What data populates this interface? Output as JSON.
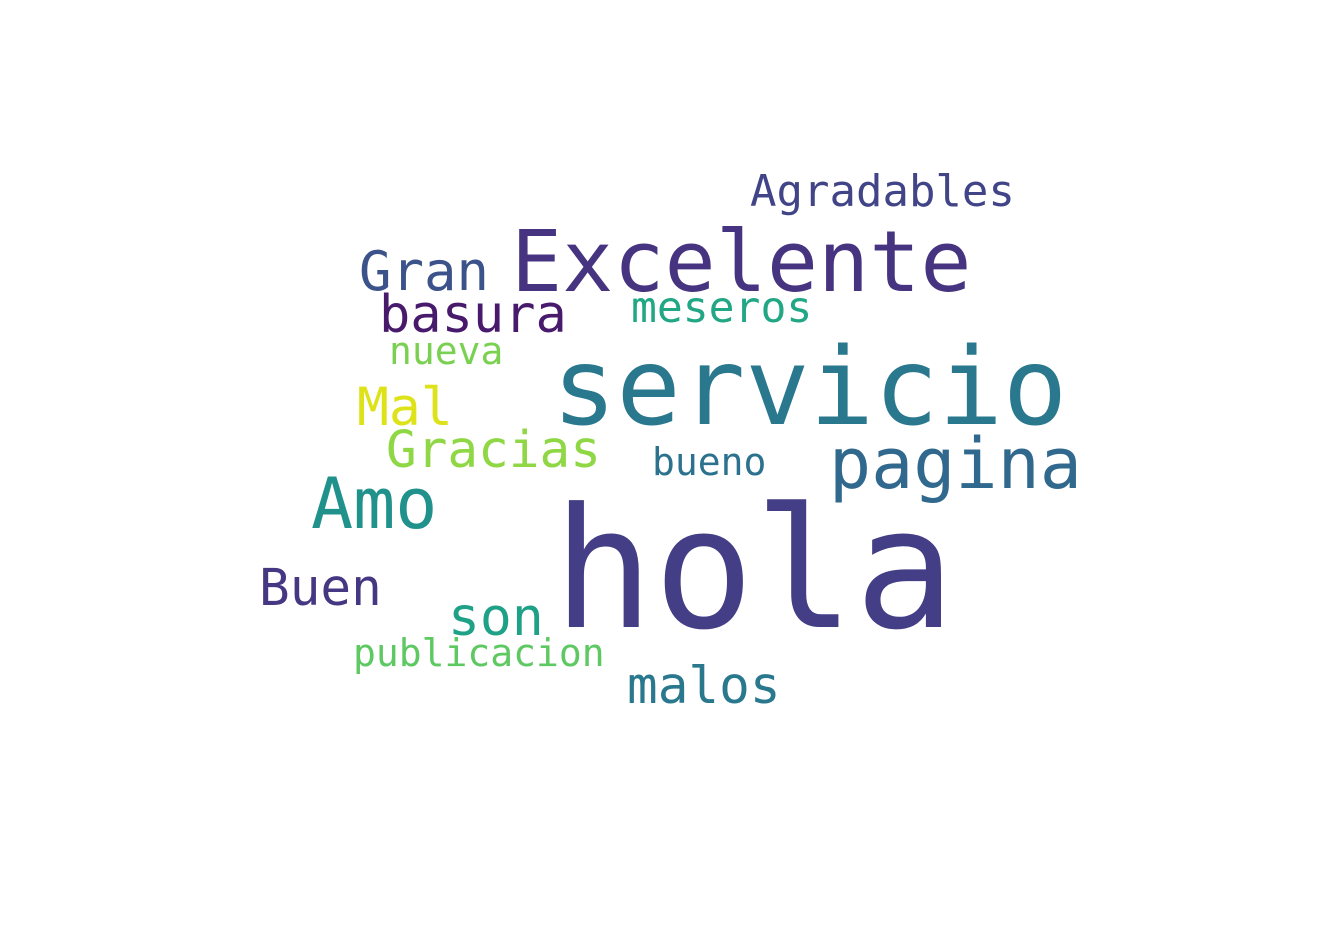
{
  "words": [
    {
      "text": "hola",
      "color": "#433e85"
    },
    {
      "text": "servicio",
      "color": "#2a788e"
    },
    {
      "text": "Excelente",
      "color": "#463480"
    },
    {
      "text": "pagina",
      "color": "#31688e"
    },
    {
      "text": "Amo",
      "color": "#21918c"
    },
    {
      "text": "basura",
      "color": "#481a6c"
    },
    {
      "text": "Gran",
      "color": "#3b528b"
    },
    {
      "text": "Agradables",
      "color": "#414487"
    },
    {
      "text": "meseros",
      "color": "#22a785"
    },
    {
      "text": "nueva",
      "color": "#7ad151"
    },
    {
      "text": "Mal",
      "color": "#dde318"
    },
    {
      "text": "Gracias",
      "color": "#8fd744"
    },
    {
      "text": "bueno",
      "color": "#2c728e"
    },
    {
      "text": "Buen",
      "color": "#453781"
    },
    {
      "text": "son",
      "color": "#1fa187"
    },
    {
      "text": "publicacion",
      "color": "#5ec962"
    },
    {
      "text": "malos",
      "color": "#2a788e"
    }
  ]
}
